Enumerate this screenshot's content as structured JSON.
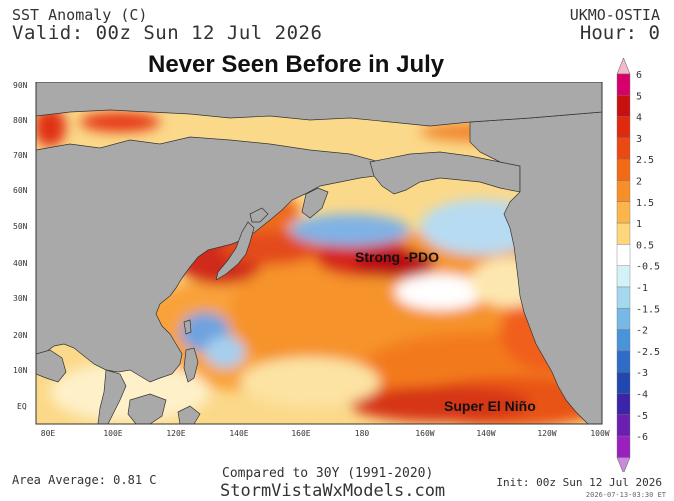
{
  "header": {
    "title": "SST Anomaly (C)",
    "valid": "Valid: 00z Sun 12 Jul 2026",
    "model": "UKMO-OSTIA",
    "hour": "Hour: 0"
  },
  "headline": "Never Seen Before in July",
  "map": {
    "lat_labels": [
      "90N",
      "80N",
      "70N",
      "60N",
      "50N",
      "40N",
      "30N",
      "20N",
      "10N",
      "EQ"
    ],
    "lon_labels": [
      "80E",
      "100E",
      "120E",
      "140E",
      "160E",
      "180",
      "160W",
      "140W",
      "120W",
      "100W"
    ],
    "annotations": {
      "pdo": "Strong -PDO",
      "nino": "Super El Niño"
    },
    "colors": {
      "land": "#a9a9a9",
      "ocean_warm": "#f7c24f",
      "strong_warm": "#c9101a",
      "cool": "#7fb2e5"
    }
  },
  "colorbar": {
    "labels": [
      "6",
      "5",
      "4",
      "3",
      "2.5",
      "2",
      "1.5",
      "1",
      "0.5",
      "-0.5",
      "-1",
      "-1.5",
      "-2",
      "-2.5",
      "-3",
      "-4",
      "-5",
      "-6"
    ],
    "colors": [
      "#d6006b",
      "#c81010",
      "#e02a10",
      "#ea4a12",
      "#f26a14",
      "#f78e2a",
      "#fbb54a",
      "#fdd77a",
      "#ffffff",
      "#d4f1f7",
      "#a5d8ef",
      "#76b9e6",
      "#4b93d9",
      "#2e6cc7",
      "#2048ae",
      "#3a24a8",
      "#6a1fb0",
      "#9a20c0"
    ],
    "top_cap_color": "#f5b8cc",
    "bottom_cap_color": "#cc88dd"
  },
  "footer": {
    "area_average": "Area Average: 0.81 C",
    "compared": "Compared to 30Y (1991-2020)",
    "site": "StormVistaWxModels.com",
    "init": "Init: 00z Sun 12 Jul 2026",
    "stamp": "2026-07-13-03:30 ET"
  }
}
